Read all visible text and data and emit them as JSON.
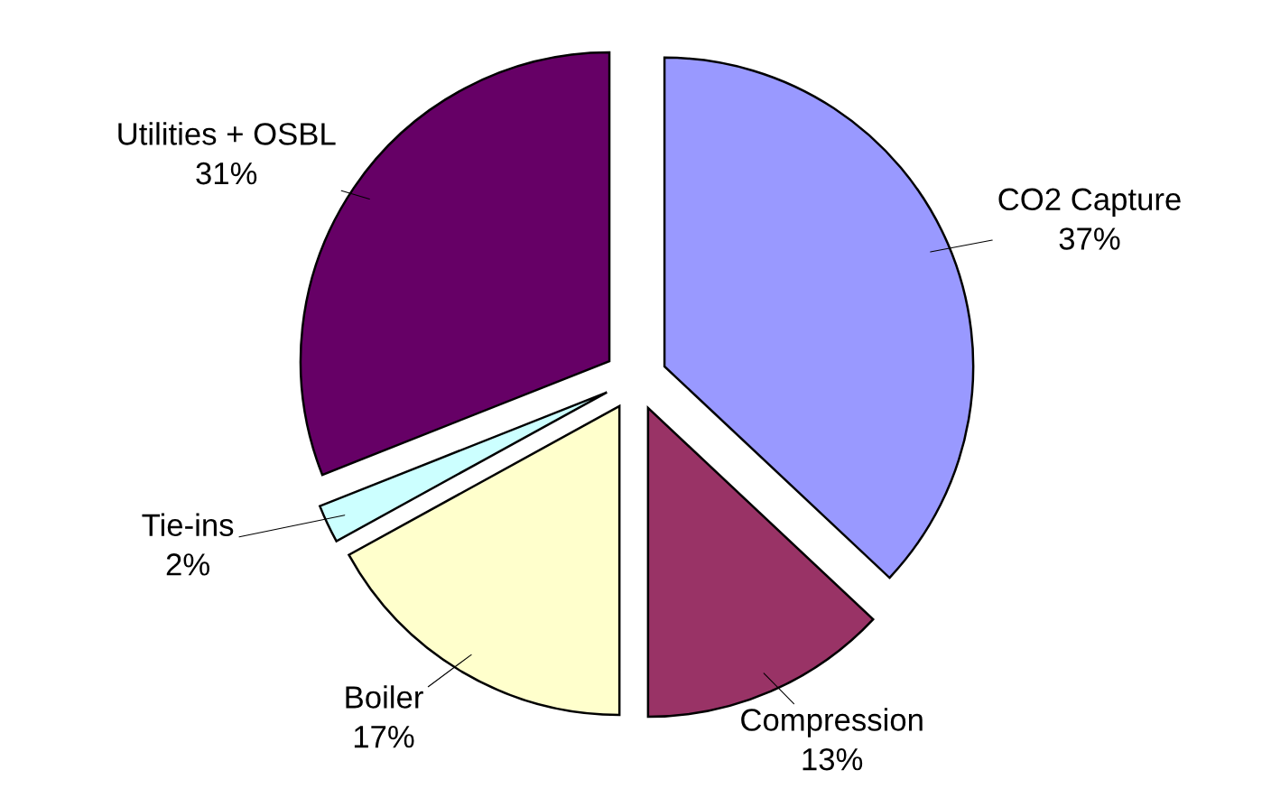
{
  "chart_data": {
    "type": "pie",
    "categories": [
      "CO2 Capture",
      "Compression",
      "Boiler",
      "Tie-ins",
      "Utilities + OSBL"
    ],
    "values": [
      37,
      13,
      17,
      2,
      31
    ],
    "value_labels": [
      "37%",
      "13%",
      "17%",
      "2%",
      "31%"
    ],
    "colors": [
      "#9999ff",
      "#993366",
      "#ffffcc",
      "#ccffff",
      "#660066"
    ],
    "legend": false
  }
}
